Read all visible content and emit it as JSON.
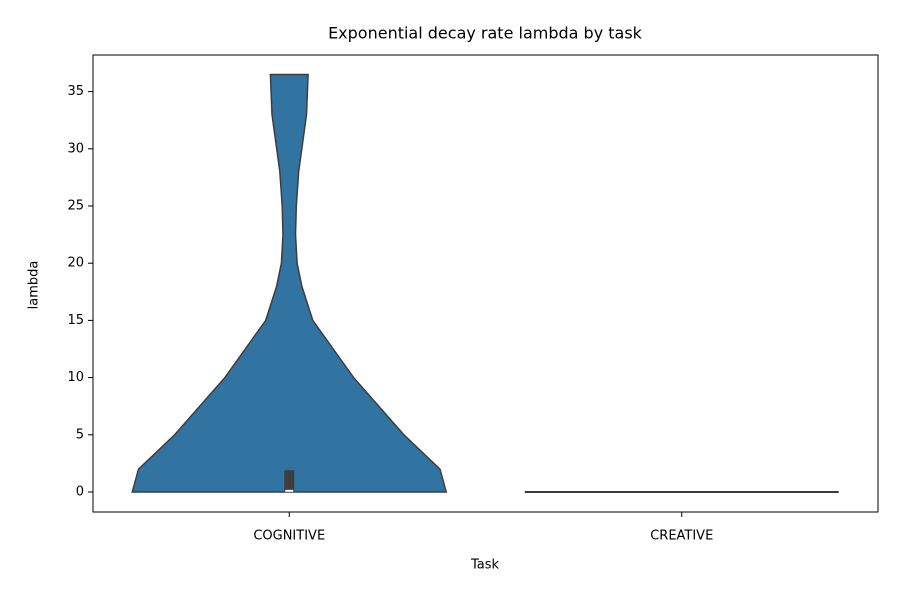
{
  "chart_data": {
    "type": "violin",
    "title": "Exponential decay rate lambda by task",
    "x_label": "Task",
    "y_label": "lambda",
    "categories": [
      "COGNITIVE",
      "CREATIVE"
    ],
    "color": "#3274a1",
    "series": [
      {
        "name": "COGNITIVE",
        "y": [
          0,
          2,
          5,
          10,
          15,
          18,
          20,
          22.5,
          25,
          28,
          30,
          33,
          36.5
        ],
        "density": [
          1,
          0.96,
          0.73,
          0.41,
          0.15,
          0.08,
          0.05,
          0.04,
          0.045,
          0.06,
          0.08,
          0.11,
          0.12
        ],
        "q1": 0,
        "median": 0.1,
        "q3": 1.9
      },
      {
        "name": "CREATIVE",
        "y": [
          0
        ],
        "density": [
          1
        ]
      }
    ],
    "ylim": [
      -1.75,
      38.2
    ],
    "yticks": [
      0,
      5,
      10,
      15,
      20,
      25,
      30,
      35
    ]
  }
}
